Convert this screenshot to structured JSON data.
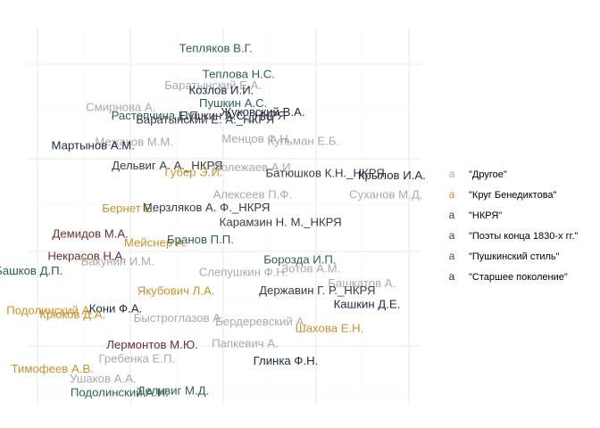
{
  "chart_data": {
    "type": "scatter",
    "title": "",
    "xlabel": "",
    "ylabel": "",
    "xlim": [
      0,
      100
    ],
    "ylim": [
      0,
      100
    ],
    "grid": true,
    "legend": {
      "placement": "right",
      "key_glyph": "a",
      "entries": [
        {
          "name": "\"Другое\"",
          "color": "#aaaaaa"
        },
        {
          "name": "\"Круг Бенедиктова\"",
          "color": "#c8922a"
        },
        {
          "name": "\"НКРЯ\"",
          "color": "#3a3a4a"
        },
        {
          "name": "\"Поэты конца 1830-х гг.\"",
          "color": "#6b2e2e"
        },
        {
          "name": "\"Пушкинский стиль\"",
          "color": "#2d5e56"
        },
        {
          "name": "\"Старшее поколение\"",
          "color": "#1b2a44"
        }
      ]
    },
    "points": [
      {
        "label": "Тепляков В.Г.",
        "x": 47.9,
        "y": 94.5,
        "group": "\"Пушкинский стиль\""
      },
      {
        "label": "Теплова Н.С.",
        "x": 53.7,
        "y": 87.6,
        "group": "\"Пушкинский стиль\""
      },
      {
        "label": "Баратынский Е.А.",
        "x": 47.2,
        "y": 84.6,
        "group": "\"Другое\""
      },
      {
        "label": "Козлов И.И.",
        "x": 49.3,
        "y": 83.3,
        "group": "\"Старшее поколение\""
      },
      {
        "label": "Пушкин А.С.",
        "x": 52.3,
        "y": 79.8,
        "group": "\"Пушкинский стиль\""
      },
      {
        "label": "Смирнова А.",
        "x": 23.8,
        "y": 78.7,
        "group": "\"Другое\""
      },
      {
        "label": "Жуковский В.А.",
        "x": 59.8,
        "y": 77.4,
        "group": "\"Старшее поколение\""
      },
      {
        "label": "Растопчина Е.П.",
        "x": 32.8,
        "y": 76.4,
        "group": "\"Пушкинский стиль\""
      },
      {
        "label": "Пушкин А.С._НКРЯ",
        "x": 52.2,
        "y": 76.4,
        "group": "\"НКРЯ\""
      },
      {
        "label": "Баратынский Е. А._НКРЯ",
        "x": 45.2,
        "y": 75.3,
        "group": "\"НКРЯ\""
      },
      {
        "label": "Менцов Ф.Н.",
        "x": 58.2,
        "y": 70.2,
        "group": "\"Другое\""
      },
      {
        "label": "Кульман Е.Б.",
        "x": 70.1,
        "y": 69.6,
        "group": "\"Другое\""
      },
      {
        "label": "Межаков М.М.",
        "x": 27.2,
        "y": 69.4,
        "group": "\"Другое\""
      },
      {
        "label": "Мартынов А.М.",
        "x": 16.8,
        "y": 68.4,
        "group": "\"Старшее поколение\""
      },
      {
        "label": "Дельвиг А. А._НКРЯ",
        "x": 35.6,
        "y": 63.0,
        "group": "\"НКРЯ\""
      },
      {
        "label": "Полежаев А.И.",
        "x": 57.4,
        "y": 62.6,
        "group": "\"Другое\""
      },
      {
        "label": "Губер Э.И.",
        "x": 42.3,
        "y": 61.2,
        "group": "\"Круг Бенедиктова\""
      },
      {
        "label": "Батюшков К.Н._НКРЯ",
        "x": 75.6,
        "y": 61.0,
        "group": "\"НКРЯ\""
      },
      {
        "label": "Крылов И.А.",
        "x": 92.5,
        "y": 60.4,
        "group": "\"Старшее поколение\""
      },
      {
        "label": "Алексеев П.Ф.",
        "x": 57.2,
        "y": 55.3,
        "group": "\"Другое\""
      },
      {
        "label": "Суханов М.Д.",
        "x": 91.0,
        "y": 55.3,
        "group": "\"Другое\""
      },
      {
        "label": "Бернет Е.",
        "x": 25.8,
        "y": 51.5,
        "group": "\"Круг Бенедиктова\""
      },
      {
        "label": "Мерзляков А. Ф._НКРЯ",
        "x": 45.5,
        "y": 51.8,
        "group": "\"НКРЯ\""
      },
      {
        "label": "Карамзин Н. М._НКРЯ",
        "x": 64.3,
        "y": 47.9,
        "group": "\"НКРЯ\""
      },
      {
        "label": "Демидов М.А.",
        "x": 16.1,
        "y": 44.7,
        "group": "\"Поэты конца 1830-х гг.\""
      },
      {
        "label": "Мейснер А.",
        "x": 32.6,
        "y": 42.4,
        "group": "\"Круг Бенедиктова\""
      },
      {
        "label": "Бранов П.П.",
        "x": 44.0,
        "y": 43.2,
        "group": "\"Пушкинский стиль\""
      },
      {
        "label": "Некрасов Н.А.",
        "x": 15.2,
        "y": 38.8,
        "group": "\"Поэты конца 1830-х гг.\""
      },
      {
        "label": "Вакунин И.М.",
        "x": 23.0,
        "y": 37.3,
        "group": "\"Другое\""
      },
      {
        "label": "Борозда И.П.",
        "x": 69.2,
        "y": 37.8,
        "group": "\"Пушкинский стиль\""
      },
      {
        "label": "Башков Д.П.",
        "x": 0.5,
        "y": 34.8,
        "group": "\"Пушкинский стиль\""
      },
      {
        "label": "Слепушкин Ф.Н.",
        "x": 54.9,
        "y": 34.4,
        "group": "\"Другое\""
      },
      {
        "label": "Зотов А.М.",
        "x": 72.0,
        "y": 35.4,
        "group": "\"Другое\""
      },
      {
        "label": "Башкатов А.",
        "x": 84.9,
        "y": 31.5,
        "group": "\"Другое\""
      },
      {
        "label": "Якубович Л.А.",
        "x": 37.8,
        "y": 29.4,
        "group": "\"Круг Бенедиктова\""
      },
      {
        "label": "Державин Г. Р._НКРЯ",
        "x": 73.6,
        "y": 29.6,
        "group": "\"НКРЯ\""
      },
      {
        "label": "Кашкин Д.Е.",
        "x": 86.2,
        "y": 25.8,
        "group": "\"Старшее поколение\""
      },
      {
        "label": "Подолинский А.",
        "x": 5.8,
        "y": 24.2,
        "group": "\"Круг Бенедиктова\""
      },
      {
        "label": "Кони Ф.А.",
        "x": 22.5,
        "y": 24.6,
        "group": "\"Старшее поколение\""
      },
      {
        "label": "Крюков Д.А.",
        "x": 11.6,
        "y": 23.1,
        "group": "\"Круг Бенедиктова\""
      },
      {
        "label": "Быстроглазов А.",
        "x": 38.5,
        "y": 22.1,
        "group": "\"Другое\""
      },
      {
        "label": "Бердеревский А.",
        "x": 59.4,
        "y": 21.2,
        "group": "\"Другое\""
      },
      {
        "label": "Шахова Е.Н.",
        "x": 76.7,
        "y": 19.4,
        "group": "\"Круг Бенедиктова\""
      },
      {
        "label": "Лермонтов М.Ю.",
        "x": 31.8,
        "y": 14.9,
        "group": "\"Поэты конца 1830-х гг.\""
      },
      {
        "label": "Папкевич А.",
        "x": 55.3,
        "y": 15.3,
        "group": "\"Другое\""
      },
      {
        "label": "Гребенка Е.П.",
        "x": 27.9,
        "y": 11.3,
        "group": "\"Другое\""
      },
      {
        "label": "Глинка Ф.Н.",
        "x": 65.6,
        "y": 10.6,
        "group": "\"Старшее поколение\""
      },
      {
        "label": "Тимофеев А.В.",
        "x": 6.5,
        "y": 8.5,
        "group": "\"Круг Бенедиктова\""
      },
      {
        "label": "Ушаков А.А.",
        "x": 19.3,
        "y": 5.8,
        "group": "\"Другое\""
      },
      {
        "label": "Подолинский А.И.",
        "x": 23.5,
        "y": 2.2,
        "group": "\"Пушкинский стиль\""
      },
      {
        "label": "Дельвиг М.Д.",
        "x": 37.1,
        "y": 2.6,
        "group": "\"Пушкинский стиль\""
      }
    ]
  }
}
